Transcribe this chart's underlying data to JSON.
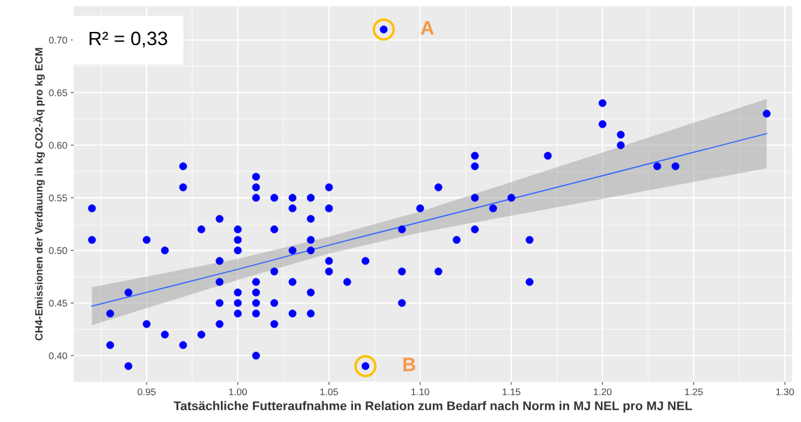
{
  "chart_data": {
    "type": "scatter",
    "xlabel": "Tatsächliche Futteraufnahme in Relation zum Bedarf nach Norm in MJ NEL pro MJ NEL",
    "ylabel": "CH4-Emissionen der Verdauung in kg CO2-Äq pro kg ECM",
    "annotations": [
      "R² = 0,33",
      {
        "text": "A",
        "x": 1.08,
        "y": 0.71
      },
      {
        "text": "B",
        "x": 1.07,
        "y": 0.39
      }
    ],
    "xlim": [
      0.91,
      1.304
    ],
    "ylim": [
      0.375,
      0.732
    ],
    "xticks": [
      {
        "value": 0.95,
        "label": "0.95"
      },
      {
        "value": 1.0,
        "label": "1.00"
      },
      {
        "value": 1.05,
        "label": "1.05"
      },
      {
        "value": 1.1,
        "label": "1.10"
      },
      {
        "value": 1.15,
        "label": "1.15"
      },
      {
        "value": 1.2,
        "label": "1.20"
      },
      {
        "value": 1.25,
        "label": "1.25"
      },
      {
        "value": 1.3,
        "label": "1.30"
      }
    ],
    "yticks": [
      {
        "value": 0.4,
        "label": "0.40"
      },
      {
        "value": 0.45,
        "label": "0.45"
      },
      {
        "value": 0.5,
        "label": "0.50"
      },
      {
        "value": 0.55,
        "label": "0.55"
      },
      {
        "value": 0.6,
        "label": "0.60"
      },
      {
        "value": 0.65,
        "label": "0.65"
      },
      {
        "value": 0.7,
        "label": "0.70"
      }
    ],
    "grid": true,
    "marker": "circle",
    "legend": false,
    "series": [
      {
        "color": "#0000ff",
        "x": [
          0.92,
          0.92,
          0.93,
          0.93,
          0.94,
          0.94,
          0.95,
          0.95,
          0.96,
          0.96,
          0.97,
          0.97,
          0.97,
          0.98,
          0.98,
          0.99,
          0.99,
          0.99,
          0.99,
          0.99,
          1.0,
          1.0,
          1.0,
          1.0,
          1.0,
          1.0,
          1.01,
          1.01,
          1.01,
          1.01,
          1.01,
          1.01,
          1.01,
          1.01,
          1.02,
          1.02,
          1.02,
          1.02,
          1.02,
          1.03,
          1.03,
          1.03,
          1.03,
          1.03,
          1.04,
          1.04,
          1.04,
          1.04,
          1.04,
          1.04,
          1.05,
          1.05,
          1.05,
          1.05,
          1.06,
          1.07,
          1.07,
          1.08,
          1.09,
          1.09,
          1.09,
          1.1,
          1.11,
          1.11,
          1.12,
          1.13,
          1.13,
          1.13,
          1.13,
          1.14,
          1.15,
          1.16,
          1.16,
          1.17,
          1.2,
          1.2,
          1.21,
          1.21,
          1.23,
          1.24,
          1.29
        ],
        "values": [
          0.54,
          0.51,
          0.44,
          0.41,
          0.46,
          0.39,
          0.51,
          0.43,
          0.5,
          0.42,
          0.58,
          0.56,
          0.41,
          0.52,
          0.42,
          0.53,
          0.49,
          0.47,
          0.45,
          0.43,
          0.52,
          0.51,
          0.5,
          0.46,
          0.45,
          0.44,
          0.57,
          0.56,
          0.55,
          0.47,
          0.46,
          0.45,
          0.44,
          0.4,
          0.55,
          0.52,
          0.48,
          0.45,
          0.43,
          0.55,
          0.54,
          0.5,
          0.47,
          0.44,
          0.55,
          0.53,
          0.51,
          0.5,
          0.46,
          0.44,
          0.56,
          0.54,
          0.49,
          0.48,
          0.47,
          0.49,
          0.39,
          0.71,
          0.52,
          0.48,
          0.45,
          0.54,
          0.56,
          0.48,
          0.51,
          0.59,
          0.58,
          0.55,
          0.52,
          0.54,
          0.55,
          0.51,
          0.47,
          0.59,
          0.64,
          0.62,
          0.61,
          0.6,
          0.58,
          0.58,
          0.63
        ]
      },
      {
        "type": "line",
        "color": "#3366ff",
        "marker": "none",
        "x": [
          0.92,
          1.0,
          1.05,
          1.1,
          1.2,
          1.29
        ],
        "values": [
          0.447,
          0.482,
          0.505,
          0.527,
          0.571,
          0.611
        ],
        "lower": [
          0.429,
          0.472,
          0.497,
          0.517,
          0.549,
          0.578
        ],
        "upper": [
          0.465,
          0.492,
          0.513,
          0.537,
          0.593,
          0.644
        ]
      }
    ]
  }
}
